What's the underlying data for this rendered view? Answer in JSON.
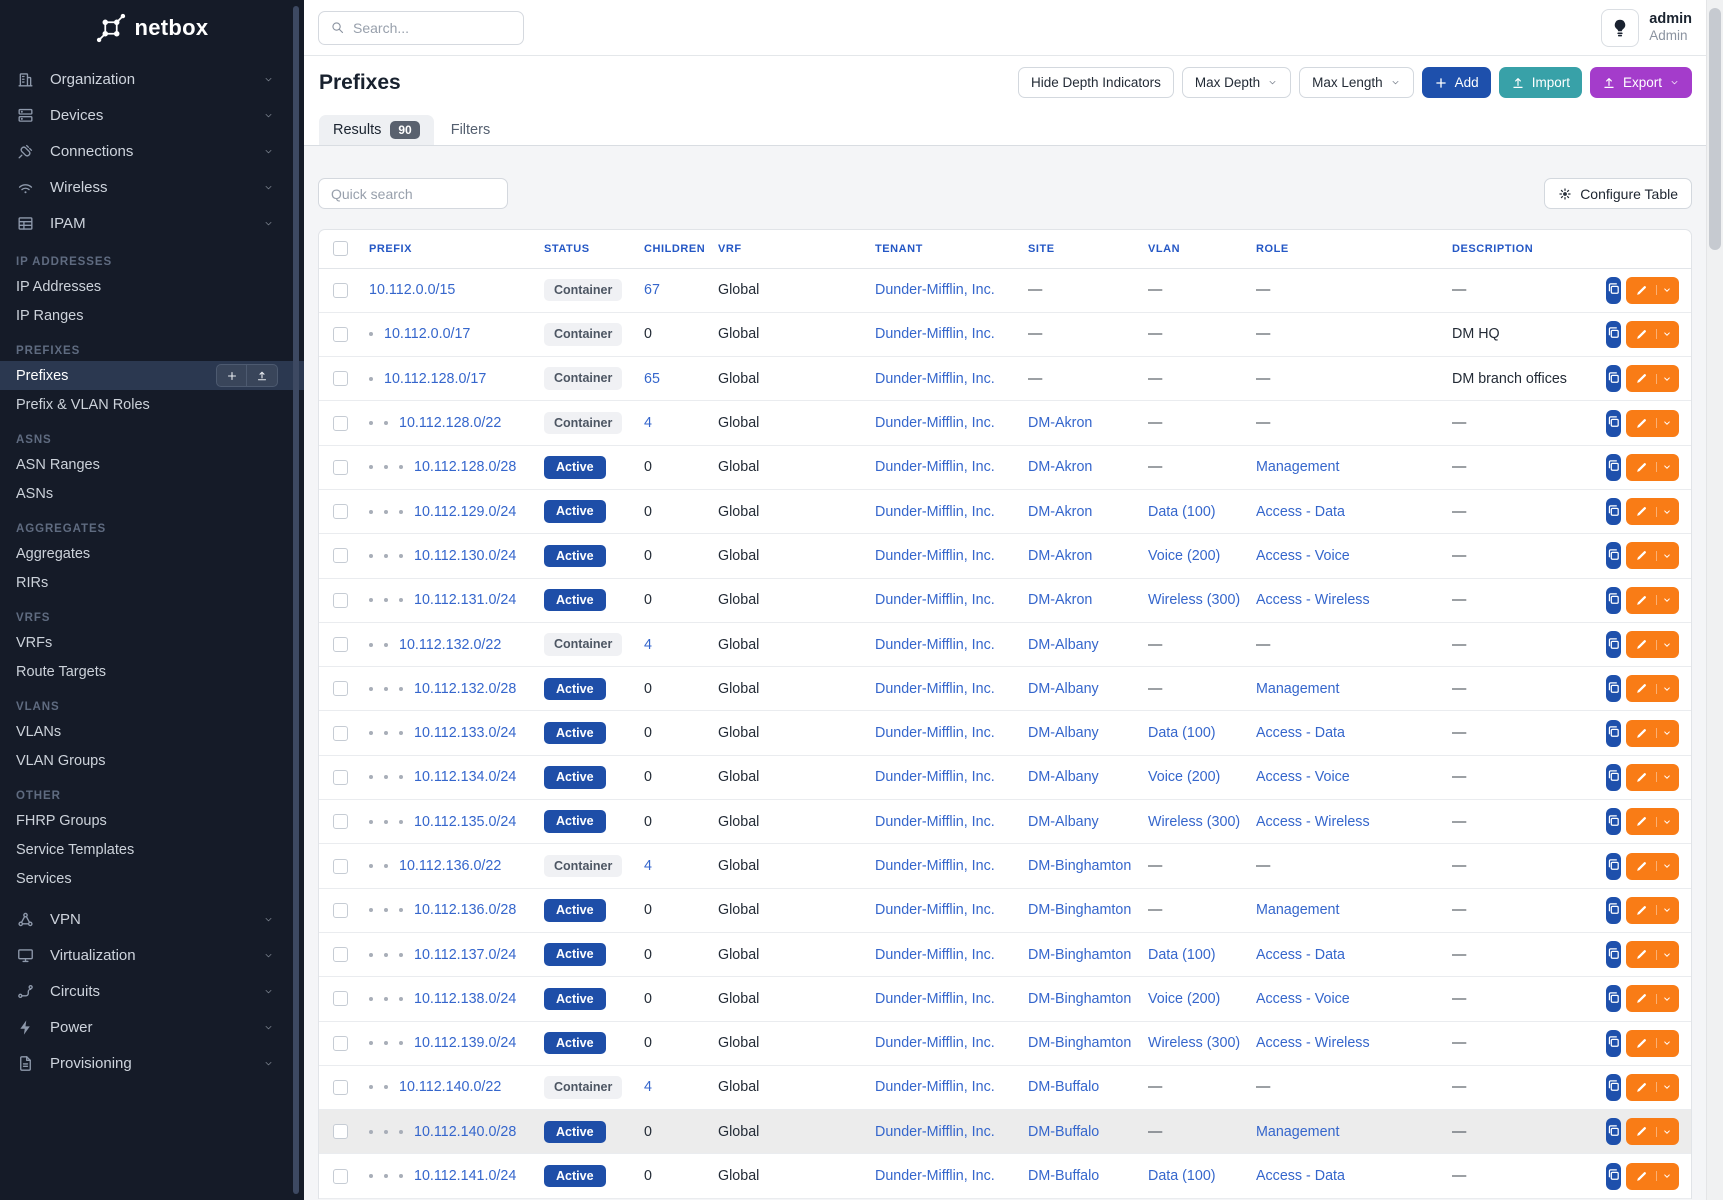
{
  "colors": {
    "sidebar_bg": "#151b28",
    "primary_blue": "#1e50ac",
    "import_teal": "#38a1a8",
    "export_purple": "#a43ccb",
    "active_badge": "#1e4ea8",
    "link_blue": "#3566cc",
    "header_blue": "#2457c5",
    "edit_orange": "#f97c16",
    "container_badge_bg": "#f0f1f4",
    "highlight_row": "#ececec"
  },
  "sidebar": {
    "logo_text": "netbox",
    "top_menu": [
      {
        "label": "Organization",
        "icon": "building-icon"
      },
      {
        "label": "Devices",
        "icon": "server-icon"
      },
      {
        "label": "Connections",
        "icon": "plug-icon"
      },
      {
        "label": "Wireless",
        "icon": "wifi-icon"
      },
      {
        "label": "IPAM",
        "icon": "ipam-grid-icon"
      }
    ],
    "sections": [
      {
        "title": "IP ADDRESSES",
        "items": [
          {
            "label": "IP Addresses"
          },
          {
            "label": "IP Ranges"
          }
        ]
      },
      {
        "title": "PREFIXES",
        "items": [
          {
            "label": "Prefixes",
            "active": true
          },
          {
            "label": "Prefix & VLAN Roles"
          }
        ]
      },
      {
        "title": "ASNS",
        "items": [
          {
            "label": "ASN Ranges"
          },
          {
            "label": "ASNs"
          }
        ]
      },
      {
        "title": "AGGREGATES",
        "items": [
          {
            "label": "Aggregates"
          },
          {
            "label": "RIRs"
          }
        ]
      },
      {
        "title": "VRFS",
        "items": [
          {
            "label": "VRFs"
          },
          {
            "label": "Route Targets"
          }
        ]
      },
      {
        "title": "VLANS",
        "items": [
          {
            "label": "VLANs"
          },
          {
            "label": "VLAN Groups"
          }
        ]
      },
      {
        "title": "OTHER",
        "items": [
          {
            "label": "FHRP Groups"
          },
          {
            "label": "Service Templates"
          },
          {
            "label": "Services"
          }
        ]
      }
    ],
    "bottom_menu": [
      {
        "label": "VPN",
        "icon": "vpn-network-icon"
      },
      {
        "label": "Virtualization",
        "icon": "monitor-icon"
      },
      {
        "label": "Circuits",
        "icon": "circuit-route-icon"
      },
      {
        "label": "Power",
        "icon": "power-bolt-icon"
      },
      {
        "label": "Provisioning",
        "icon": "document-icon"
      }
    ]
  },
  "topbar": {
    "search_placeholder": "Search...",
    "user": {
      "name": "admin",
      "role": "Admin"
    }
  },
  "page": {
    "title": "Prefixes",
    "buttons": {
      "hide_depth": "Hide Depth Indicators",
      "max_depth": "Max Depth",
      "max_length": "Max Length",
      "add": "Add",
      "import": "Import",
      "export": "Export"
    },
    "tabs": [
      {
        "label": "Results",
        "count": "90",
        "active": true
      },
      {
        "label": "Filters",
        "active": false
      }
    ],
    "quick_search_placeholder": "Quick search",
    "configure_table": "Configure Table"
  },
  "table": {
    "empty_placeholder": "—",
    "columns": [
      "PREFIX",
      "STATUS",
      "CHILDREN",
      "VRF",
      "TENANT",
      "SITE",
      "VLAN",
      "ROLE",
      "DESCRIPTION"
    ],
    "rows": [
      {
        "prefix": "10.112.0.0/15",
        "depth": 0,
        "status": "Container",
        "children": "67",
        "children_link": true,
        "vrf": "Global",
        "tenant": "Dunder-Mifflin, Inc.",
        "site": null,
        "vlan": null,
        "role": null,
        "description": null
      },
      {
        "prefix": "10.112.0.0/17",
        "depth": 1,
        "status": "Container",
        "children": "0",
        "children_link": false,
        "vrf": "Global",
        "tenant": "Dunder-Mifflin, Inc.",
        "site": null,
        "vlan": null,
        "role": null,
        "description": "DM HQ"
      },
      {
        "prefix": "10.112.128.0/17",
        "depth": 1,
        "status": "Container",
        "children": "65",
        "children_link": true,
        "vrf": "Global",
        "tenant": "Dunder-Mifflin, Inc.",
        "site": null,
        "vlan": null,
        "role": null,
        "description": "DM branch offices"
      },
      {
        "prefix": "10.112.128.0/22",
        "depth": 2,
        "status": "Container",
        "children": "4",
        "children_link": true,
        "vrf": "Global",
        "tenant": "Dunder-Mifflin, Inc.",
        "site": "DM-Akron",
        "vlan": null,
        "role": null,
        "description": null
      },
      {
        "prefix": "10.112.128.0/28",
        "depth": 3,
        "status": "Active",
        "children": "0",
        "children_link": false,
        "vrf": "Global",
        "tenant": "Dunder-Mifflin, Inc.",
        "site": "DM-Akron",
        "vlan": null,
        "role": "Management",
        "description": null
      },
      {
        "prefix": "10.112.129.0/24",
        "depth": 3,
        "status": "Active",
        "children": "0",
        "children_link": false,
        "vrf": "Global",
        "tenant": "Dunder-Mifflin, Inc.",
        "site": "DM-Akron",
        "vlan": "Data (100)",
        "role": "Access - Data",
        "description": null
      },
      {
        "prefix": "10.112.130.0/24",
        "depth": 3,
        "status": "Active",
        "children": "0",
        "children_link": false,
        "vrf": "Global",
        "tenant": "Dunder-Mifflin, Inc.",
        "site": "DM-Akron",
        "vlan": "Voice (200)",
        "role": "Access - Voice",
        "description": null
      },
      {
        "prefix": "10.112.131.0/24",
        "depth": 3,
        "status": "Active",
        "children": "0",
        "children_link": false,
        "vrf": "Global",
        "tenant": "Dunder-Mifflin, Inc.",
        "site": "DM-Akron",
        "vlan": "Wireless (300)",
        "role": "Access - Wireless",
        "description": null
      },
      {
        "prefix": "10.112.132.0/22",
        "depth": 2,
        "status": "Container",
        "children": "4",
        "children_link": true,
        "vrf": "Global",
        "tenant": "Dunder-Mifflin, Inc.",
        "site": "DM-Albany",
        "vlan": null,
        "role": null,
        "description": null
      },
      {
        "prefix": "10.112.132.0/28",
        "depth": 3,
        "status": "Active",
        "children": "0",
        "children_link": false,
        "vrf": "Global",
        "tenant": "Dunder-Mifflin, Inc.",
        "site": "DM-Albany",
        "vlan": null,
        "role": "Management",
        "description": null
      },
      {
        "prefix": "10.112.133.0/24",
        "depth": 3,
        "status": "Active",
        "children": "0",
        "children_link": false,
        "vrf": "Global",
        "tenant": "Dunder-Mifflin, Inc.",
        "site": "DM-Albany",
        "vlan": "Data (100)",
        "role": "Access - Data",
        "description": null
      },
      {
        "prefix": "10.112.134.0/24",
        "depth": 3,
        "status": "Active",
        "children": "0",
        "children_link": false,
        "vrf": "Global",
        "tenant": "Dunder-Mifflin, Inc.",
        "site": "DM-Albany",
        "vlan": "Voice (200)",
        "role": "Access - Voice",
        "description": null
      },
      {
        "prefix": "10.112.135.0/24",
        "depth": 3,
        "status": "Active",
        "children": "0",
        "children_link": false,
        "vrf": "Global",
        "tenant": "Dunder-Mifflin, Inc.",
        "site": "DM-Albany",
        "vlan": "Wireless (300)",
        "role": "Access - Wireless",
        "description": null
      },
      {
        "prefix": "10.112.136.0/22",
        "depth": 2,
        "status": "Container",
        "children": "4",
        "children_link": true,
        "vrf": "Global",
        "tenant": "Dunder-Mifflin, Inc.",
        "site": "DM-Binghamton",
        "vlan": null,
        "role": null,
        "description": null
      },
      {
        "prefix": "10.112.136.0/28",
        "depth": 3,
        "status": "Active",
        "children": "0",
        "children_link": false,
        "vrf": "Global",
        "tenant": "Dunder-Mifflin, Inc.",
        "site": "DM-Binghamton",
        "vlan": null,
        "role": "Management",
        "description": null
      },
      {
        "prefix": "10.112.137.0/24",
        "depth": 3,
        "status": "Active",
        "children": "0",
        "children_link": false,
        "vrf": "Global",
        "tenant": "Dunder-Mifflin, Inc.",
        "site": "DM-Binghamton",
        "vlan": "Data (100)",
        "role": "Access - Data",
        "description": null
      },
      {
        "prefix": "10.112.138.0/24",
        "depth": 3,
        "status": "Active",
        "children": "0",
        "children_link": false,
        "vrf": "Global",
        "tenant": "Dunder-Mifflin, Inc.",
        "site": "DM-Binghamton",
        "vlan": "Voice (200)",
        "role": "Access - Voice",
        "description": null
      },
      {
        "prefix": "10.112.139.0/24",
        "depth": 3,
        "status": "Active",
        "children": "0",
        "children_link": false,
        "vrf": "Global",
        "tenant": "Dunder-Mifflin, Inc.",
        "site": "DM-Binghamton",
        "vlan": "Wireless (300)",
        "role": "Access - Wireless",
        "description": null
      },
      {
        "prefix": "10.112.140.0/22",
        "depth": 2,
        "status": "Container",
        "children": "4",
        "children_link": true,
        "vrf": "Global",
        "tenant": "Dunder-Mifflin, Inc.",
        "site": "DM-Buffalo",
        "vlan": null,
        "role": null,
        "description": null
      },
      {
        "prefix": "10.112.140.0/28",
        "depth": 3,
        "status": "Active",
        "children": "0",
        "children_link": false,
        "vrf": "Global",
        "tenant": "Dunder-Mifflin, Inc.",
        "site": "DM-Buffalo",
        "vlan": null,
        "role": "Management",
        "description": null,
        "highlighted": true
      },
      {
        "prefix": "10.112.141.0/24",
        "depth": 3,
        "status": "Active",
        "children": "0",
        "children_link": false,
        "vrf": "Global",
        "tenant": "Dunder-Mifflin, Inc.",
        "site": "DM-Buffalo",
        "vlan": "Data (100)",
        "role": "Access - Data",
        "description": null
      }
    ]
  }
}
